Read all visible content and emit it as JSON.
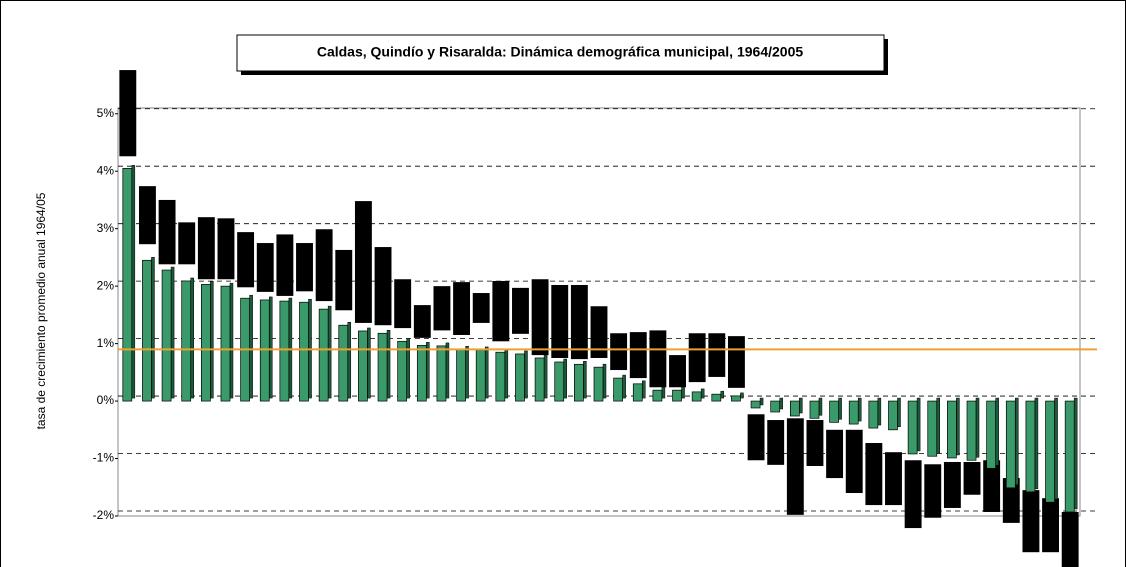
{
  "chart_data": {
    "type": "bar",
    "title": "Caldas, Quindío y Risaralda: Dinámica demográfica municipal, 1964/2005",
    "y_label": "tasa de crecimiento promedio anual 1964/05",
    "ylim": [
      -2,
      5.1
    ],
    "yticks": [
      {
        "value": -2,
        "label": "-2%"
      },
      {
        "value": -1,
        "label": "-1%"
      },
      {
        "value": 0,
        "label": "0%"
      },
      {
        "value": 1,
        "label": "1%"
      },
      {
        "value": 2,
        "label": "2%"
      },
      {
        "value": 3,
        "label": "3%"
      },
      {
        "value": 4,
        "label": "4%"
      },
      {
        "value": 5,
        "label": "5%"
      }
    ],
    "grid": true,
    "series": [
      {
        "color": "#3a9a6a",
        "values": [
          4.05,
          2.45,
          2.28,
          2.09,
          2.03,
          2.0,
          1.79,
          1.76,
          1.74,
          1.72,
          1.6,
          1.32,
          1.22,
          1.18,
          1.04,
          0.97,
          0.96,
          0.9,
          0.89,
          0.85,
          0.82,
          0.75,
          0.68,
          0.64,
          0.59,
          0.4,
          0.3,
          0.19,
          0.19,
          0.16,
          0.12,
          0.09,
          -0.12,
          -0.19,
          -0.26,
          -0.3,
          -0.37,
          -0.4,
          -0.47,
          -0.5,
          -0.92,
          -0.96,
          -0.99,
          -1.03,
          -1.17,
          -1.51,
          -1.58,
          -1.76,
          -1.93
        ]
      }
    ],
    "ranges": {
      "color": "#000000",
      "high": [
        5.76,
        3.74,
        3.5,
        3.11,
        3.2,
        3.18,
        2.94,
        2.75,
        2.9,
        2.75,
        2.99,
        2.63,
        3.48,
        2.68,
        2.12,
        1.67,
        2.0,
        2.07,
        1.88,
        2.09,
        1.97,
        2.12,
        2.02,
        2.02,
        1.65,
        1.18,
        1.2,
        1.23,
        0.8,
        1.18,
        1.18,
        1.13,
        -0.23,
        -0.33,
        -0.3,
        -0.33,
        -0.5,
        -0.5,
        -0.73,
        -0.89,
        -1.03,
        -1.1,
        -1.06,
        -1.06,
        -1.03,
        -1.34,
        -1.55,
        -1.69,
        -1.93
      ],
      "low": [
        4.26,
        2.73,
        2.38,
        2.38,
        2.12,
        2.12,
        1.98,
        1.9,
        1.83,
        1.91,
        1.74,
        1.58,
        1.36,
        1.32,
        1.27,
        1.1,
        1.23,
        1.15,
        1.36,
        1.04,
        1.17,
        0.8,
        0.75,
        0.73,
        0.75,
        0.54,
        0.4,
        0.24,
        0.24,
        0.33,
        0.42,
        0.23,
        -1.03,
        -1.11,
        -1.98,
        -1.13,
        -1.34,
        -1.6,
        -1.81,
        -1.81,
        -2.21,
        -2.03,
        -1.86,
        -1.63,
        -1.93,
        -2.12,
        -2.63,
        -2.63,
        -2.89
      ]
    },
    "reference_line": {
      "value": 0.9,
      "color": "#f0a030"
    }
  }
}
